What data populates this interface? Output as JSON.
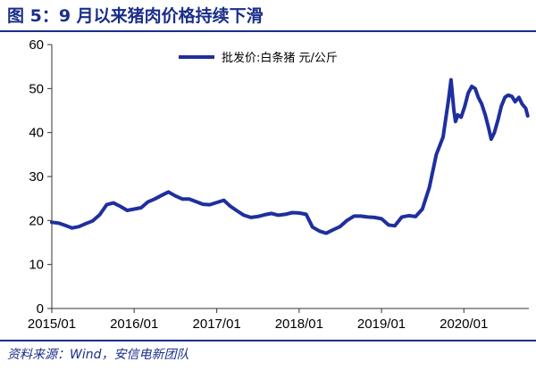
{
  "header": {
    "title": "图 5：9 月以来猪肉价格持续下滑"
  },
  "footer": {
    "source": "资料来源：Wind，安信电新团队"
  },
  "colors": {
    "accent": "#1a2e8a",
    "series": "#1f2f9e"
  },
  "chart_data": {
    "type": "line",
    "title": "",
    "xlabel": "",
    "ylabel": "",
    "ylim": [
      0,
      60
    ],
    "yticks": [
      0,
      10,
      20,
      30,
      40,
      50,
      60
    ],
    "xlim": [
      "2015-01-01",
      "2020-10-15"
    ],
    "xticks": [
      "2015/01",
      "2016/01",
      "2017/01",
      "2018/01",
      "2019/01",
      "2020/01"
    ],
    "grid": false,
    "legend": "top-center",
    "series": [
      {
        "name": "批发价:白条猪 元/公斤",
        "points": [
          [
            "2015-01-01",
            19.6
          ],
          [
            "2015-02-01",
            19.4
          ],
          [
            "2015-03-01",
            18.9
          ],
          [
            "2015-04-01",
            18.3
          ],
          [
            "2015-05-01",
            18.6
          ],
          [
            "2015-06-01",
            19.3
          ],
          [
            "2015-07-01",
            19.9
          ],
          [
            "2015-08-01",
            21.3
          ],
          [
            "2015-09-01",
            23.6
          ],
          [
            "2015-10-01",
            24.0
          ],
          [
            "2015-11-01",
            23.2
          ],
          [
            "2015-12-01",
            22.3
          ],
          [
            "2016-01-01",
            22.6
          ],
          [
            "2016-02-01",
            22.9
          ],
          [
            "2016-03-01",
            24.2
          ],
          [
            "2016-04-01",
            24.9
          ],
          [
            "2016-05-01",
            25.7
          ],
          [
            "2016-06-01",
            26.5
          ],
          [
            "2016-07-01",
            25.6
          ],
          [
            "2016-08-01",
            24.9
          ],
          [
            "2016-09-01",
            24.9
          ],
          [
            "2016-10-01",
            24.3
          ],
          [
            "2016-11-01",
            23.7
          ],
          [
            "2016-12-01",
            23.6
          ],
          [
            "2017-01-01",
            24.1
          ],
          [
            "2017-02-01",
            24.6
          ],
          [
            "2017-03-01",
            23.3
          ],
          [
            "2017-04-01",
            22.2
          ],
          [
            "2017-05-01",
            21.2
          ],
          [
            "2017-06-01",
            20.7
          ],
          [
            "2017-07-01",
            20.9
          ],
          [
            "2017-08-01",
            21.3
          ],
          [
            "2017-09-01",
            21.6
          ],
          [
            "2017-10-01",
            21.2
          ],
          [
            "2017-11-01",
            21.4
          ],
          [
            "2017-12-01",
            21.8
          ],
          [
            "2018-01-01",
            21.7
          ],
          [
            "2018-02-01",
            21.4
          ],
          [
            "2018-03-01",
            18.5
          ],
          [
            "2018-04-01",
            17.6
          ],
          [
            "2018-05-01",
            17.1
          ],
          [
            "2018-06-01",
            17.9
          ],
          [
            "2018-07-01",
            18.6
          ],
          [
            "2018-08-01",
            20.0
          ],
          [
            "2018-09-01",
            21.0
          ],
          [
            "2018-10-01",
            21.0
          ],
          [
            "2018-11-01",
            20.8
          ],
          [
            "2018-12-01",
            20.7
          ],
          [
            "2019-01-01",
            20.4
          ],
          [
            "2019-02-01",
            19.0
          ],
          [
            "2019-03-01",
            18.8
          ],
          [
            "2019-04-01",
            20.8
          ],
          [
            "2019-05-01",
            21.1
          ],
          [
            "2019-06-01",
            20.9
          ],
          [
            "2019-07-01",
            22.6
          ],
          [
            "2019-08-01",
            27.5
          ],
          [
            "2019-09-01",
            35.0
          ],
          [
            "2019-10-01",
            39.0
          ],
          [
            "2019-10-25",
            47.5
          ],
          [
            "2019-11-05",
            52.0
          ],
          [
            "2019-11-18",
            45.0
          ],
          [
            "2019-11-25",
            42.5
          ],
          [
            "2019-12-05",
            44.0
          ],
          [
            "2019-12-20",
            43.5
          ],
          [
            "2020-01-05",
            46.0
          ],
          [
            "2020-01-20",
            49.0
          ],
          [
            "2020-02-05",
            50.5
          ],
          [
            "2020-02-20",
            50.0
          ],
          [
            "2020-03-05",
            48.0
          ],
          [
            "2020-03-20",
            46.5
          ],
          [
            "2020-04-05",
            44.0
          ],
          [
            "2020-04-20",
            41.0
          ],
          [
            "2020-05-01",
            38.5
          ],
          [
            "2020-05-15",
            40.0
          ],
          [
            "2020-06-01",
            43.0
          ],
          [
            "2020-06-15",
            46.0
          ],
          [
            "2020-07-01",
            48.0
          ],
          [
            "2020-07-15",
            48.5
          ],
          [
            "2020-08-01",
            48.2
          ],
          [
            "2020-08-15",
            47.0
          ],
          [
            "2020-09-01",
            48.0
          ],
          [
            "2020-09-15",
            46.5
          ],
          [
            "2020-10-01",
            45.5
          ],
          [
            "2020-10-10",
            43.8
          ]
        ]
      }
    ]
  }
}
